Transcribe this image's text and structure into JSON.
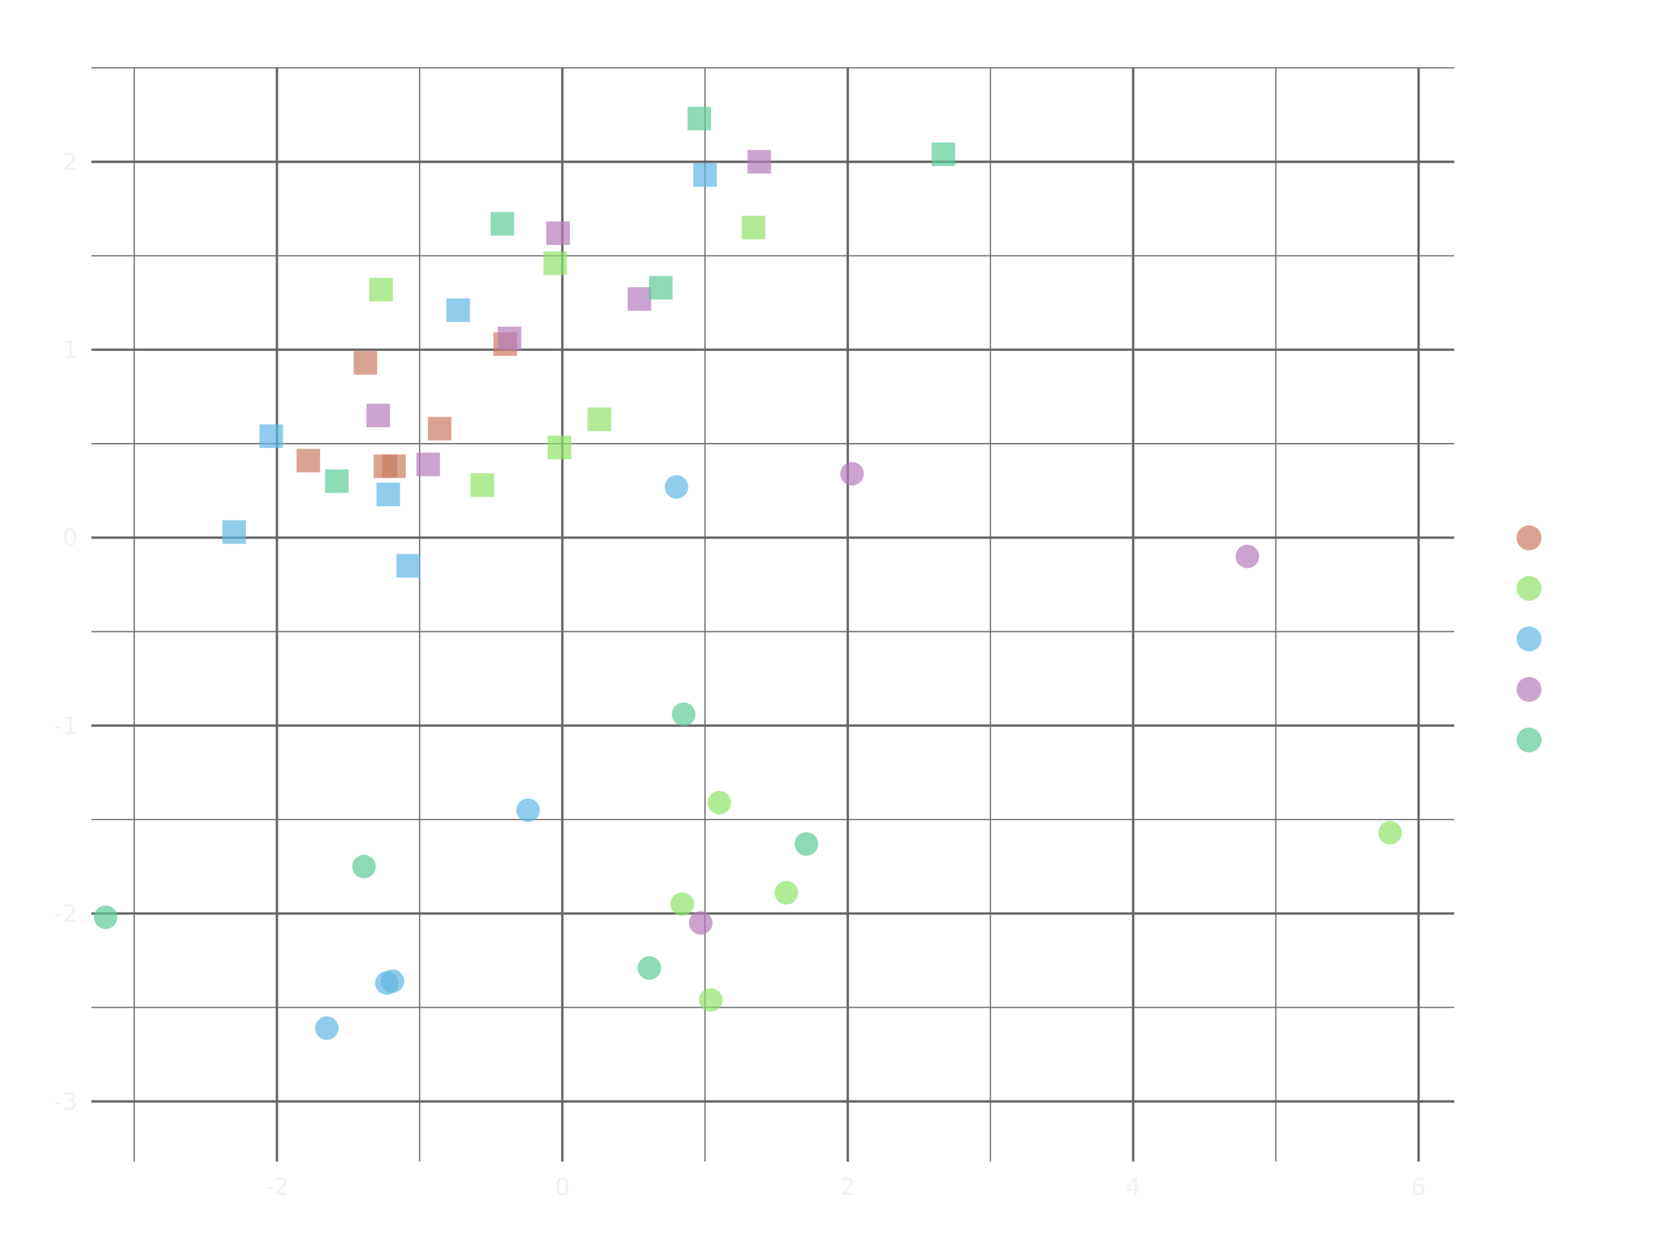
{
  "chart_data": {
    "type": "scatter",
    "title": "",
    "xlabel": "",
    "ylabel": "",
    "xlim": [
      -3.3,
      6.25
    ],
    "ylim": [
      -3.32,
      2.5
    ],
    "x_ticks": [
      -2,
      0,
      2,
      4,
      6
    ],
    "x_tick_labels": [
      "-2",
      "0",
      "2",
      "4",
      "6"
    ],
    "y_ticks": [
      -3,
      -2,
      -1,
      0,
      1,
      2
    ],
    "y_tick_labels": [
      "-3",
      "-2",
      "-1",
      "0",
      "1",
      "2"
    ],
    "grid": true,
    "legend_position": "right",
    "shapes": {
      "square": "square",
      "circle": "circle"
    },
    "series": [
      {
        "color": "#cb7c63",
        "points": [
          {
            "x": -1.38,
            "y": 0.93,
            "shape": "square"
          },
          {
            "x": -0.4,
            "y": 1.03,
            "shape": "square"
          },
          {
            "x": -0.86,
            "y": 0.58,
            "shape": "square"
          },
          {
            "x": -1.78,
            "y": 0.41,
            "shape": "square"
          },
          {
            "x": -1.24,
            "y": 0.38,
            "shape": "square"
          },
          {
            "x": -1.18,
            "y": 0.38,
            "shape": "square"
          }
        ]
      },
      {
        "color": "#90e36a",
        "points": [
          {
            "x": -1.27,
            "y": 1.32,
            "shape": "square"
          },
          {
            "x": -0.05,
            "y": 1.46,
            "shape": "square"
          },
          {
            "x": 1.34,
            "y": 1.65,
            "shape": "square"
          },
          {
            "x": 0.26,
            "y": 0.63,
            "shape": "square"
          },
          {
            "x": -0.02,
            "y": 0.48,
            "shape": "square"
          },
          {
            "x": -0.56,
            "y": 0.28,
            "shape": "square"
          },
          {
            "x": 1.1,
            "y": -1.41,
            "shape": "circle"
          },
          {
            "x": 1.57,
            "y": -1.89,
            "shape": "circle"
          },
          {
            "x": 0.84,
            "y": -1.95,
            "shape": "circle"
          },
          {
            "x": 1.04,
            "y": -2.46,
            "shape": "circle"
          },
          {
            "x": 5.8,
            "y": -1.57,
            "shape": "circle"
          }
        ]
      },
      {
        "color": "#61b6e3",
        "points": [
          {
            "x": 1.0,
            "y": 1.93,
            "shape": "square"
          },
          {
            "x": -0.73,
            "y": 1.21,
            "shape": "square"
          },
          {
            "x": -2.04,
            "y": 0.54,
            "shape": "square"
          },
          {
            "x": -1.22,
            "y": 0.23,
            "shape": "square"
          },
          {
            "x": -2.3,
            "y": 0.03,
            "shape": "square"
          },
          {
            "x": -1.08,
            "y": -0.15,
            "shape": "square"
          },
          {
            "x": 0.8,
            "y": 0.27,
            "shape": "circle"
          },
          {
            "x": -0.24,
            "y": -1.45,
            "shape": "circle"
          },
          {
            "x": -1.23,
            "y": -2.37,
            "shape": "circle"
          },
          {
            "x": -1.19,
            "y": -2.36,
            "shape": "circle"
          },
          {
            "x": -1.65,
            "y": -2.61,
            "shape": "circle"
          }
        ]
      },
      {
        "color": "#b37db9",
        "points": [
          {
            "x": 1.38,
            "y": 2.0,
            "shape": "square"
          },
          {
            "x": -0.03,
            "y": 1.62,
            "shape": "square"
          },
          {
            "x": 0.54,
            "y": 1.27,
            "shape": "square"
          },
          {
            "x": -0.37,
            "y": 1.06,
            "shape": "square"
          },
          {
            "x": -1.29,
            "y": 0.65,
            "shape": "square"
          },
          {
            "x": -0.94,
            "y": 0.39,
            "shape": "square"
          },
          {
            "x": 2.03,
            "y": 0.34,
            "shape": "circle"
          },
          {
            "x": 4.8,
            "y": -0.1,
            "shape": "circle"
          },
          {
            "x": 0.97,
            "y": -2.05,
            "shape": "circle"
          }
        ]
      },
      {
        "color": "#5ccb98",
        "points": [
          {
            "x": 0.96,
            "y": 2.23,
            "shape": "square"
          },
          {
            "x": 2.67,
            "y": 2.04,
            "shape": "square"
          },
          {
            "x": -0.42,
            "y": 1.67,
            "shape": "square"
          },
          {
            "x": 0.69,
            "y": 1.33,
            "shape": "square"
          },
          {
            "x": -1.58,
            "y": 0.3,
            "shape": "square"
          },
          {
            "x": 0.85,
            "y": -0.94,
            "shape": "circle"
          },
          {
            "x": 1.71,
            "y": -1.63,
            "shape": "circle"
          },
          {
            "x": -1.39,
            "y": -1.75,
            "shape": "circle"
          },
          {
            "x": -3.2,
            "y": -2.02,
            "shape": "circle"
          },
          {
            "x": 0.61,
            "y": -2.29,
            "shape": "circle"
          }
        ]
      }
    ]
  }
}
